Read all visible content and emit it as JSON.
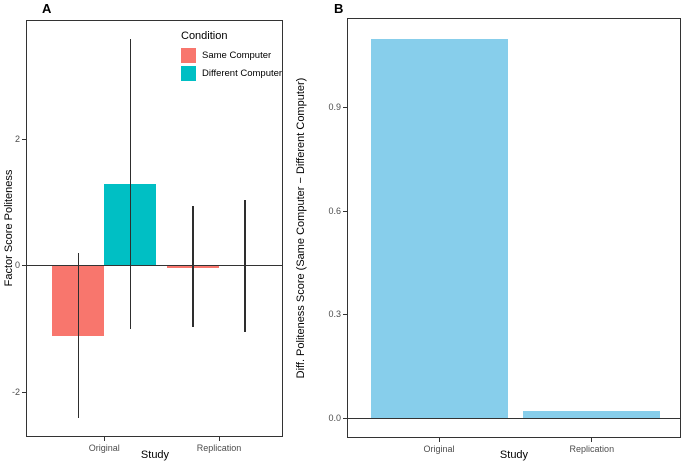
{
  "figure": {
    "panel_a_label": "A",
    "panel_b_label": "B"
  },
  "colors": {
    "same_computer": "#F8766D",
    "different_computer": "#00BFC4",
    "diff_bar": "#87CEEB",
    "axis_line": "#333333",
    "error_bar": "#2e2e2e",
    "tick_text": "#4d4d4d"
  },
  "chart_data": [
    {
      "panel": "A",
      "type": "bar",
      "categories": [
        "Original",
        "Replication"
      ],
      "series": [
        {
          "name": "Same Computer",
          "color": "#F8766D",
          "values": [
            -1.11,
            -0.04
          ],
          "error_low": [
            -2.4,
            -0.96
          ],
          "error_high": [
            0.2,
            0.94
          ]
        },
        {
          "name": "Different Computer",
          "color": "#00BFC4",
          "values": [
            1.3,
            0.01
          ],
          "error_low": [
            -1.0,
            -1.04
          ],
          "error_high": [
            3.58,
            1.04
          ]
        }
      ],
      "xlabel": "Study",
      "ylabel": "Factor Score Politeness",
      "ylim": [
        -2.7,
        3.88
      ],
      "yticks": {
        "values": [
          2,
          0,
          -2
        ],
        "labels": [
          "2",
          "0",
          "-2"
        ]
      },
      "zero_line": true,
      "grid": false,
      "legend": {
        "title": "Condition",
        "position": "top-right-inside",
        "items": [
          {
            "label": "Same Computer",
            "color": "#F8766D"
          },
          {
            "label": "Different Computer",
            "color": "#00BFC4"
          }
        ]
      }
    },
    {
      "panel": "B",
      "type": "bar",
      "categories": [
        "Original",
        "Replication"
      ],
      "values": [
        1.1,
        0.02
      ],
      "bar_color": "#87CEEB",
      "xlabel": "Study",
      "ylabel": "Diff. Politeness Score (Same Computer − Different Computer)",
      "ylim": [
        -0.058,
        1.161
      ],
      "yticks": {
        "values": [
          0.9,
          0.6,
          0.3,
          0.0
        ],
        "labels": [
          "0.9",
          "0.6",
          "0.3",
          "0.0"
        ]
      },
      "zero_line": true,
      "grid": false
    }
  ]
}
